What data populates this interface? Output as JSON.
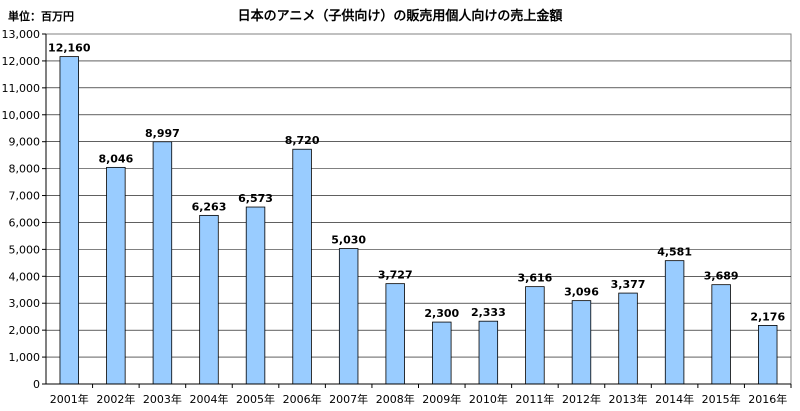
{
  "unit_label": "単位：百万円",
  "chart_data": {
    "type": "bar",
    "title": "日本のアニメ（子供向け）の販売用個人向けの売上金額",
    "xlabel": "",
    "ylabel": "",
    "ylim": [
      0,
      13000
    ],
    "ytick_step": 1000,
    "grid": true,
    "legend": "none",
    "bar_color": "#99ccff",
    "bar_edge_color": "#000000",
    "categories": [
      "2001年",
      "2002年",
      "2003年",
      "2004年",
      "2005年",
      "2006年",
      "2007年",
      "2008年",
      "2009年",
      "2010年",
      "2011年",
      "2012年",
      "2013年",
      "2014年",
      "2015年",
      "2016年"
    ],
    "values": [
      12160,
      8046,
      8997,
      6263,
      6573,
      8720,
      5030,
      3727,
      2300,
      2333,
      3616,
      3096,
      3377,
      4581,
      3689,
      2176
    ],
    "value_labels": [
      "12,160",
      "8,046",
      "8,997",
      "6,263",
      "6,573",
      "8,720",
      "5,030",
      "3,727",
      "2,300",
      "2,333",
      "3,616",
      "3,096",
      "3,377",
      "4,581",
      "3,689",
      "2,176"
    ],
    "ytick_labels": [
      "0",
      "1,000",
      "2,000",
      "3,000",
      "4,000",
      "5,000",
      "6,000",
      "7,000",
      "8,000",
      "9,000",
      "10,000",
      "11,000",
      "12,000",
      "13,000"
    ]
  }
}
